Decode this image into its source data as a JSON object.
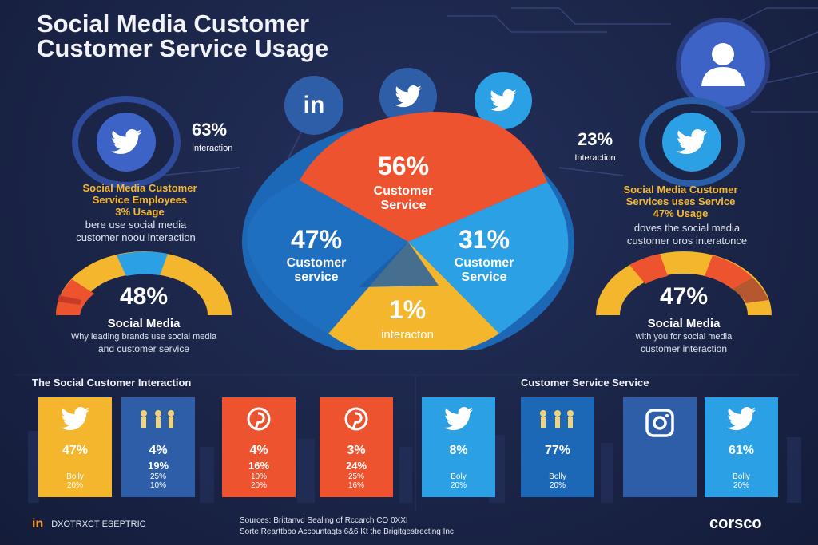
{
  "title": {
    "line1": "Social Media Customer",
    "line2": "Customer Service Usage"
  },
  "chart_data": [
    {
      "type": "pie",
      "slices": [
        {
          "label": "Customer Service",
          "value": 56,
          "display": "56%",
          "color": "#ee5330"
        },
        {
          "label": "Customer Service",
          "value": 31,
          "display": "31%",
          "color": "#2ba0e4"
        },
        {
          "label": "interacton",
          "value": 1,
          "display": "1%",
          "color": "#f3b62c"
        },
        {
          "label": "Customer service",
          "value": 47,
          "display": "47%",
          "color": "#1c68b6"
        }
      ]
    },
    {
      "type": "bar",
      "title": "The Social Customer Interaction",
      "bars": [
        {
          "icon": "twitter-icon",
          "color": "#f3b62c",
          "v1": "47%",
          "v2": "",
          "v3": "Bolly\n20%"
        },
        {
          "icon": "people-icon",
          "color": "#2e5ea8",
          "v1": "4%",
          "v2": "19%",
          "v3": "25%\n10%"
        },
        {
          "icon": "pinterest-icon",
          "color": "#ee5330",
          "v1": "4%",
          "v2": "16%",
          "v3": "10%\n20%"
        },
        {
          "icon": "pinterest-icon",
          "color": "#ee5330",
          "v1": "3%",
          "v2": "24%",
          "v3": "25%\n16%"
        }
      ]
    },
    {
      "type": "bar",
      "title": "Customer Service Service",
      "bars": [
        {
          "icon": "twitter-icon",
          "color": "#2ba0e4",
          "v1": "8%",
          "v2": "",
          "v3": "Boly\n20%"
        },
        {
          "icon": "people-icon",
          "color": "#1c68b6",
          "v1": "77%",
          "v2": "",
          "v3": "Bolly\n20%"
        },
        {
          "icon": "instagram-icon",
          "color": "#2e5ea8",
          "v1": "",
          "v2": "",
          "v3": ""
        },
        {
          "icon": "twitter-icon",
          "color": "#2ba0e4",
          "v1": "61%",
          "v2": "",
          "v3": "Bolly\n20%"
        }
      ]
    }
  ],
  "left": {
    "stat": "63%",
    "stat_sub": "Interaction",
    "heading1": "Social Media Customer",
    "heading2": "Service Employees",
    "heading3": "3% Usage",
    "desc1": "bere use social media",
    "desc2": "customer noou interaction",
    "gauge_value": "48%",
    "gauge_title": "Social Media",
    "gauge_desc1": "Why leading brands use social media",
    "gauge_desc2": "and customer service"
  },
  "right": {
    "stat": "23%",
    "stat_sub": "Interaction",
    "heading1": "Social Media Customer",
    "heading2": "Services uses Service",
    "heading3": "47% Usage",
    "desc1": "doves the social media",
    "desc2": "customer oros interatonce",
    "gauge_value": "47%",
    "gauge_title": "Social Media",
    "gauge_desc1": "with you for social media",
    "gauge_desc2": "customer interaction"
  },
  "top_icons": [
    "linkedin-icon",
    "twitter-icon",
    "twitter-icon"
  ],
  "footer": {
    "left_brand": "in",
    "left_text": "DXOTRXCT ESEPTRIC",
    "source1": "Sources: Brittanvd Sealing of Rccarch CO 0XXI",
    "source2": "Sorte Rearttbbo Accountagts 6&6 Kt the Brigitgestrecting Inc",
    "brand": "corsco"
  },
  "colors": {
    "orange": "#ee5330",
    "blue": "#2ba0e4",
    "dark_blue": "#1c68b6",
    "yellow": "#f3b62c",
    "bg": "#1b2548"
  }
}
